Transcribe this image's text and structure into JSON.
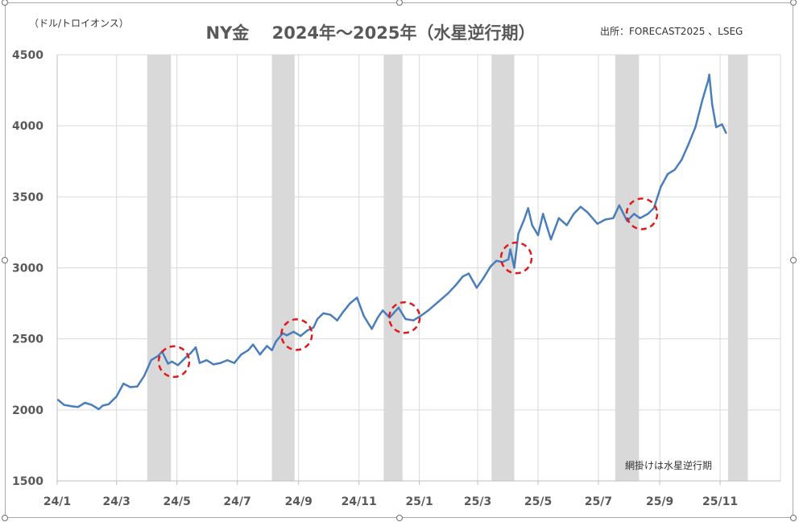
{
  "chart_data": {
    "type": "line",
    "title": "NY金　 2024年～2025年（水星逆行期）",
    "unit_label": "（ドル/トロイオンス）",
    "source": "出所：FORECAST2025 、LSEG",
    "note": "網掛けは水星逆行期",
    "xlabel": "",
    "ylabel": "",
    "ylim": [
      1500,
      4500
    ],
    "yticks": [
      1500,
      2000,
      2500,
      3000,
      3500,
      4000,
      4500
    ],
    "ytick_labels": [
      "1500",
      "2000",
      "2500",
      "3000",
      "3500",
      "4000",
      "4500"
    ],
    "xlim": [
      "2024-01-01",
      "2026-01-01"
    ],
    "xticks": [
      "2024-01-01",
      "2024-03-01",
      "2024-05-01",
      "2024-07-01",
      "2024-09-01",
      "2024-11-01",
      "2025-01-01",
      "2025-03-01",
      "2025-05-01",
      "2025-07-01",
      "2025-09-01",
      "2025-11-01"
    ],
    "xtick_labels": [
      "24/1",
      "24/3",
      "24/5",
      "24/7",
      "24/9",
      "24/11",
      "25/1",
      "25/3",
      "25/5",
      "25/7",
      "25/9",
      "25/11"
    ],
    "grid": {
      "horizontal": true,
      "vertical": true
    },
    "legend": "none",
    "colors": {
      "line": "#4a7ebb",
      "shade": "#d9d9d9",
      "marker": "#e0191d",
      "grid": "#d9d9d9",
      "axis_text": "#595959"
    },
    "shaded_periods": [
      {
        "start": "2024-04-01",
        "end": "2024-04-25"
      },
      {
        "start": "2024-08-05",
        "end": "2024-08-28"
      },
      {
        "start": "2024-11-26",
        "end": "2024-12-15"
      },
      {
        "start": "2025-03-15",
        "end": "2025-04-07"
      },
      {
        "start": "2025-07-18",
        "end": "2025-08-11"
      },
      {
        "start": "2025-11-09",
        "end": "2025-11-29"
      }
    ],
    "highlight_circles": [
      {
        "date": "2024-04-28",
        "value": 2340
      },
      {
        "date": "2024-08-30",
        "value": 2530
      },
      {
        "date": "2024-12-17",
        "value": 2650
      },
      {
        "date": "2025-04-09",
        "value": 3070
      },
      {
        "date": "2025-08-14",
        "value": 3380
      }
    ],
    "series": [
      {
        "x": [
          "2024-01-02",
          "2024-01-08",
          "2024-01-16",
          "2024-01-22",
          "2024-01-29",
          "2024-02-05",
          "2024-02-12",
          "2024-02-16",
          "2024-02-22",
          "2024-03-01",
          "2024-03-08",
          "2024-03-15",
          "2024-03-22",
          "2024-03-29",
          "2024-04-05",
          "2024-04-12",
          "2024-04-16",
          "2024-04-22",
          "2024-04-26",
          "2024-05-02",
          "2024-05-10",
          "2024-05-15",
          "2024-05-20",
          "2024-05-24",
          "2024-05-31",
          "2024-06-07",
          "2024-06-14",
          "2024-06-21",
          "2024-06-28",
          "2024-07-05",
          "2024-07-12",
          "2024-07-17",
          "2024-07-24",
          "2024-07-31",
          "2024-08-05",
          "2024-08-09",
          "2024-08-16",
          "2024-08-20",
          "2024-08-27",
          "2024-09-03",
          "2024-09-10",
          "2024-09-16",
          "2024-09-20",
          "2024-09-26",
          "2024-10-03",
          "2024-10-10",
          "2024-10-16",
          "2024-10-23",
          "2024-10-30",
          "2024-11-06",
          "2024-11-14",
          "2024-11-20",
          "2024-11-25",
          "2024-12-02",
          "2024-12-11",
          "2024-12-18",
          "2024-12-26",
          "2025-01-02",
          "2025-01-10",
          "2025-01-20",
          "2025-01-30",
          "2025-02-07",
          "2025-02-14",
          "2025-02-20",
          "2025-02-28",
          "2025-03-07",
          "2025-03-14",
          "2025-03-20",
          "2025-03-26",
          "2025-04-01",
          "2025-04-03",
          "2025-04-07",
          "2025-04-11",
          "2025-04-17",
          "2025-04-21",
          "2025-04-25",
          "2025-05-01",
          "2025-05-06",
          "2025-05-14",
          "2025-05-22",
          "2025-05-30",
          "2025-06-06",
          "2025-06-13",
          "2025-06-20",
          "2025-06-30",
          "2025-07-08",
          "2025-07-16",
          "2025-07-22",
          "2025-07-30",
          "2025-08-06",
          "2025-08-12",
          "2025-08-20",
          "2025-08-26",
          "2025-09-02",
          "2025-09-09",
          "2025-09-16",
          "2025-09-23",
          "2025-09-30",
          "2025-10-07",
          "2025-10-14",
          "2025-10-20",
          "2025-10-21",
          "2025-10-24",
          "2025-10-28",
          "2025-11-03",
          "2025-11-07"
        ],
        "values": [
          2070,
          2035,
          2025,
          2020,
          2050,
          2035,
          2005,
          2030,
          2040,
          2095,
          2185,
          2160,
          2165,
          2240,
          2350,
          2380,
          2410,
          2325,
          2340,
          2315,
          2370,
          2400,
          2440,
          2330,
          2350,
          2320,
          2330,
          2350,
          2330,
          2390,
          2420,
          2460,
          2390,
          2450,
          2420,
          2480,
          2540,
          2525,
          2550,
          2520,
          2560,
          2580,
          2640,
          2680,
          2670,
          2630,
          2690,
          2750,
          2790,
          2660,
          2570,
          2650,
          2700,
          2650,
          2720,
          2640,
          2630,
          2660,
          2700,
          2760,
          2820,
          2880,
          2940,
          2960,
          2860,
          2930,
          3010,
          3050,
          3040,
          3060,
          3130,
          3000,
          3240,
          3340,
          3420,
          3300,
          3230,
          3380,
          3200,
          3350,
          3300,
          3380,
          3430,
          3390,
          3310,
          3340,
          3350,
          3440,
          3330,
          3380,
          3350,
          3380,
          3420,
          3570,
          3660,
          3690,
          3760,
          3870,
          3990,
          4180,
          4320,
          4360,
          4150,
          3990,
          4010,
          3950
        ]
      }
    ]
  }
}
